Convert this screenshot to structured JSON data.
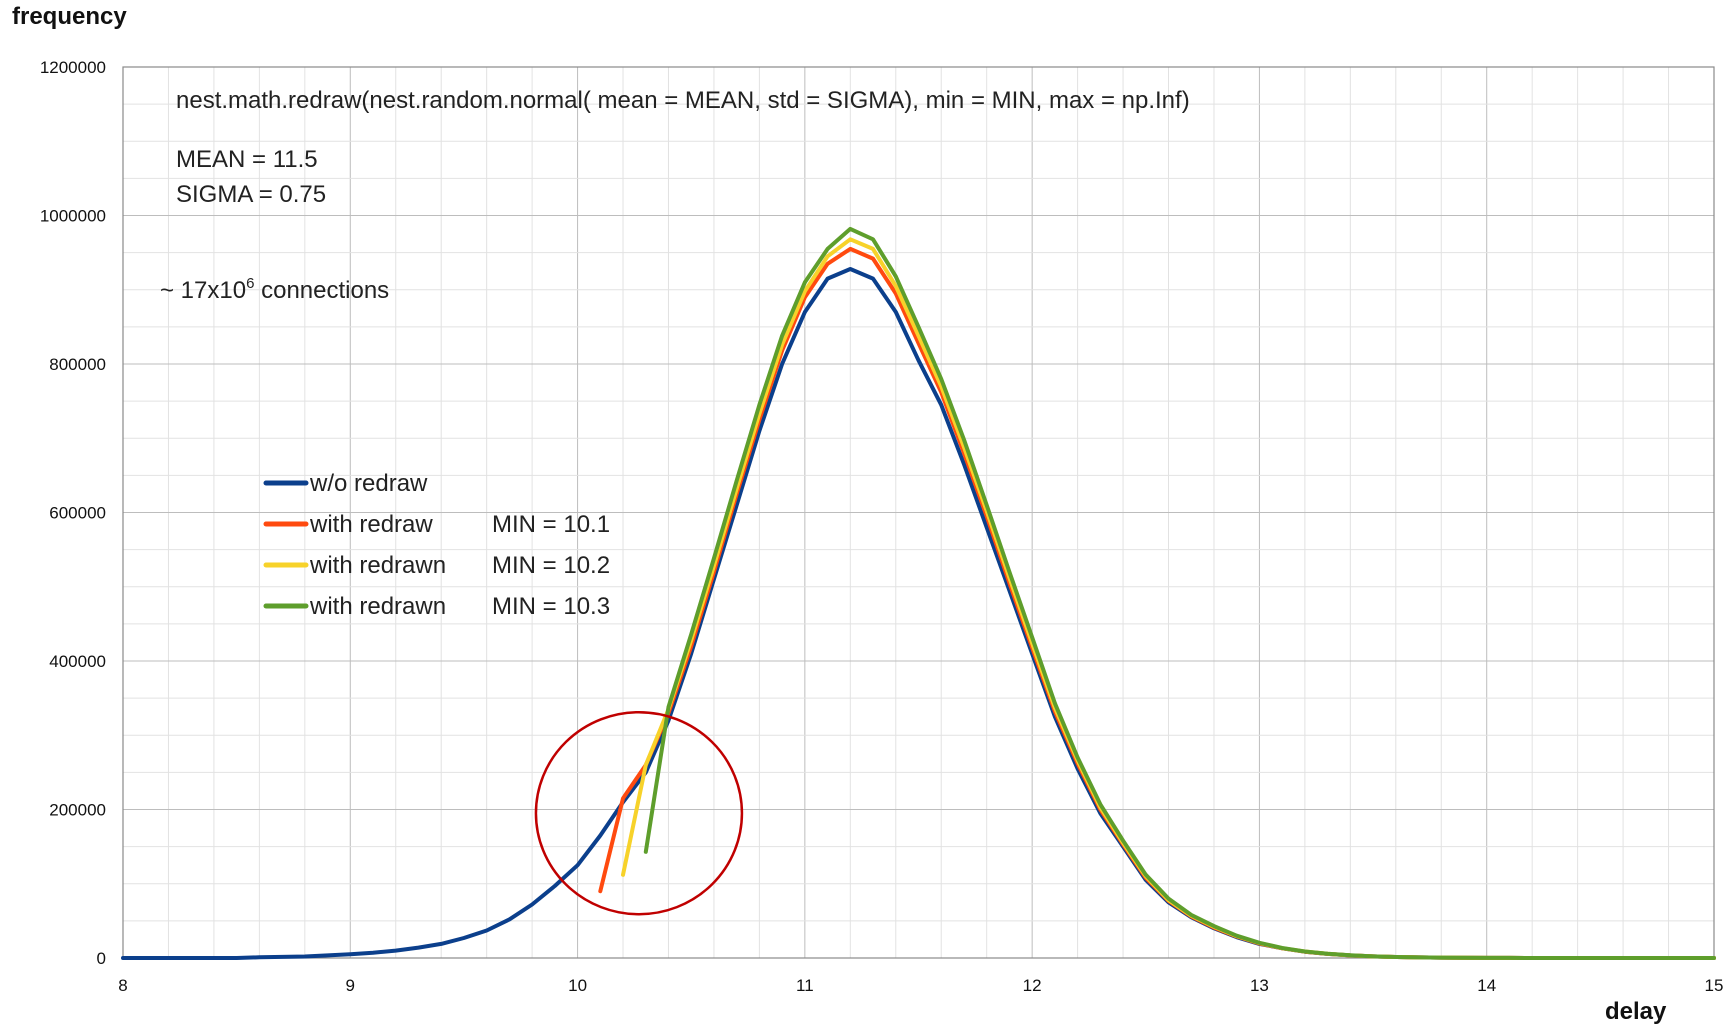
{
  "chart_data": {
    "type": "line",
    "xlabel": "delay",
    "ylabel": "frequency",
    "xlim": [
      8,
      15
    ],
    "ylim": [
      0,
      1200000
    ],
    "x_ticks": [
      "8",
      "9",
      "10",
      "11",
      "12",
      "13",
      "14",
      "15"
    ],
    "y_ticks": [
      "0",
      "200000",
      "400000",
      "600000",
      "800000",
      "1000000",
      "1200000"
    ],
    "grid": true,
    "legend_position": "center-left",
    "annotations": {
      "formula": "nest.math.redraw(nest.random.normal( mean = MEAN, std = SIGMA), min = MIN, max = np.Inf)",
      "mean": "MEAN = 11.5",
      "sigma": "SIGMA = 0.75",
      "connections_prefix": "~ 17x10",
      "connections_exponent": "6",
      "connections_suffix": " connections"
    },
    "highlight_circle": {
      "center": [
        10.27,
        195000
      ],
      "color": "#c00000"
    },
    "series": [
      {
        "name": "w/o redraw",
        "legend_min": "",
        "color": "#0b3f8c",
        "x": [
          8.0,
          8.1,
          8.2,
          8.3,
          8.4,
          8.5,
          8.6,
          8.7,
          8.8,
          8.9,
          9.0,
          9.1,
          9.2,
          9.3,
          9.4,
          9.5,
          9.6,
          9.7,
          9.8,
          9.9,
          10.0,
          10.1,
          10.2,
          10.3,
          10.4,
          10.5,
          10.6,
          10.7,
          10.8,
          10.9,
          11.0,
          11.1,
          11.2,
          11.3,
          11.4,
          11.5,
          11.6,
          11.7,
          11.8,
          11.9,
          12.0,
          12.1,
          12.2,
          12.3,
          12.4,
          12.5,
          12.6,
          12.7,
          12.8,
          12.9,
          13.0,
          13.1,
          13.2,
          13.3,
          13.4,
          13.5,
          13.6,
          13.7,
          13.8,
          13.9,
          14.0,
          14.1,
          14.2,
          14.3,
          14.4,
          14.5,
          14.6,
          14.7,
          14.8,
          14.9,
          15.0
        ],
        "y": [
          0,
          0,
          0,
          0,
          0,
          0,
          1000,
          1500,
          2000,
          3500,
          5000,
          7000,
          10000,
          14000,
          19000,
          27000,
          37000,
          52000,
          72000,
          97000,
          125000,
          165000,
          210000,
          250000,
          320000,
          410000,
          510000,
          610000,
          710000,
          800000,
          870000,
          915000,
          928000,
          915000,
          870000,
          805000,
          745000,
          665000,
          580000,
          495000,
          410000,
          325000,
          255000,
          195000,
          150000,
          105000,
          75000,
          55000,
          40000,
          28000,
          19000,
          13000,
          8500,
          5500,
          3500,
          2200,
          1300,
          800,
          500,
          300,
          200,
          100,
          0,
          0,
          0,
          0,
          0,
          0,
          0,
          0,
          0
        ]
      },
      {
        "name": "with redraw",
        "legend_min": "MIN = 10.1",
        "color": "#ff4a0f",
        "x": [
          10.1,
          10.2,
          10.3,
          10.4,
          10.5,
          10.6,
          10.7,
          10.8,
          10.9,
          11.0,
          11.1,
          11.2,
          11.3,
          11.4,
          11.5,
          11.6,
          11.7,
          11.8,
          11.9,
          12.0,
          12.1,
          12.2,
          12.3,
          12.4,
          12.5,
          12.6,
          12.7,
          12.8,
          12.9,
          13.0,
          13.1,
          13.2,
          13.3,
          13.4,
          13.5,
          13.6,
          13.7,
          13.8,
          13.9,
          14.0,
          14.1,
          14.2,
          14.3,
          14.4,
          14.5,
          14.6,
          14.7,
          14.8,
          14.9,
          15.0
        ],
        "y": [
          90000,
          215000,
          260000,
          330000,
          420000,
          520000,
          625000,
          725000,
          818000,
          890000,
          935000,
          955000,
          942000,
          895000,
          828000,
          762000,
          680000,
          595000,
          505000,
          418000,
          332000,
          262000,
          200000,
          153000,
          108000,
          77000,
          56000,
          41000,
          29000,
          19500,
          13000,
          8500,
          5500,
          3500,
          2200,
          1300,
          800,
          500,
          300,
          200,
          100,
          0,
          0,
          0,
          0,
          0,
          0,
          0,
          0,
          0
        ]
      },
      {
        "name": "with redrawn",
        "legend_min": "MIN = 10.2",
        "color": "#f7d22a",
        "x": [
          10.2,
          10.3,
          10.4,
          10.5,
          10.6,
          10.7,
          10.8,
          10.9,
          11.0,
          11.1,
          11.2,
          11.3,
          11.4,
          11.5,
          11.6,
          11.7,
          11.8,
          11.9,
          12.0,
          12.1,
          12.2,
          12.3,
          12.4,
          12.5,
          12.6,
          12.7,
          12.8,
          12.9,
          13.0,
          13.1,
          13.2,
          13.3,
          13.4,
          13.5,
          13.6,
          13.7,
          13.8,
          13.9,
          14.0,
          14.1,
          14.2,
          14.3,
          14.4,
          14.5,
          14.6,
          14.7,
          14.8,
          14.9,
          15.0
        ],
        "y": [
          112000,
          260000,
          335000,
          428000,
          528000,
          632000,
          733000,
          826000,
          898000,
          945000,
          968000,
          955000,
          905000,
          838000,
          770000,
          688000,
          602000,
          512000,
          424000,
          337000,
          266000,
          203000,
          155000,
          110000,
          78000,
          57000,
          42000,
          29500,
          20000,
          13200,
          8700,
          5600,
          3500,
          2200,
          1300,
          800,
          500,
          300,
          200,
          100,
          0,
          0,
          0,
          0,
          0,
          0,
          0,
          0,
          0
        ]
      },
      {
        "name": "with redrawn",
        "legend_min": "MIN = 10.3",
        "color": "#5e9e2c",
        "x": [
          10.3,
          10.4,
          10.5,
          10.6,
          10.7,
          10.8,
          10.9,
          11.0,
          11.1,
          11.2,
          11.3,
          11.4,
          11.5,
          11.6,
          11.7,
          11.8,
          11.9,
          12.0,
          12.1,
          12.2,
          12.3,
          12.4,
          12.5,
          12.6,
          12.7,
          12.8,
          12.9,
          13.0,
          13.1,
          13.2,
          13.3,
          13.4,
          13.5,
          13.6,
          13.7,
          13.8,
          13.9,
          14.0,
          14.1,
          14.2,
          14.3,
          14.4,
          14.5,
          14.6,
          14.7,
          14.8,
          14.9,
          15.0
        ],
        "y": [
          143000,
          338000,
          436000,
          538000,
          643000,
          745000,
          838000,
          910000,
          955000,
          982000,
          968000,
          918000,
          850000,
          780000,
          698000,
          610000,
          520000,
          432000,
          343000,
          270000,
          207000,
          158000,
          112000,
          80000,
          58000,
          43000,
          30000,
          20500,
          13500,
          8800,
          5700,
          3600,
          2200,
          1300,
          800,
          500,
          300,
          200,
          100,
          0,
          0,
          0,
          0,
          0,
          0,
          0,
          0,
          0
        ]
      }
    ]
  }
}
